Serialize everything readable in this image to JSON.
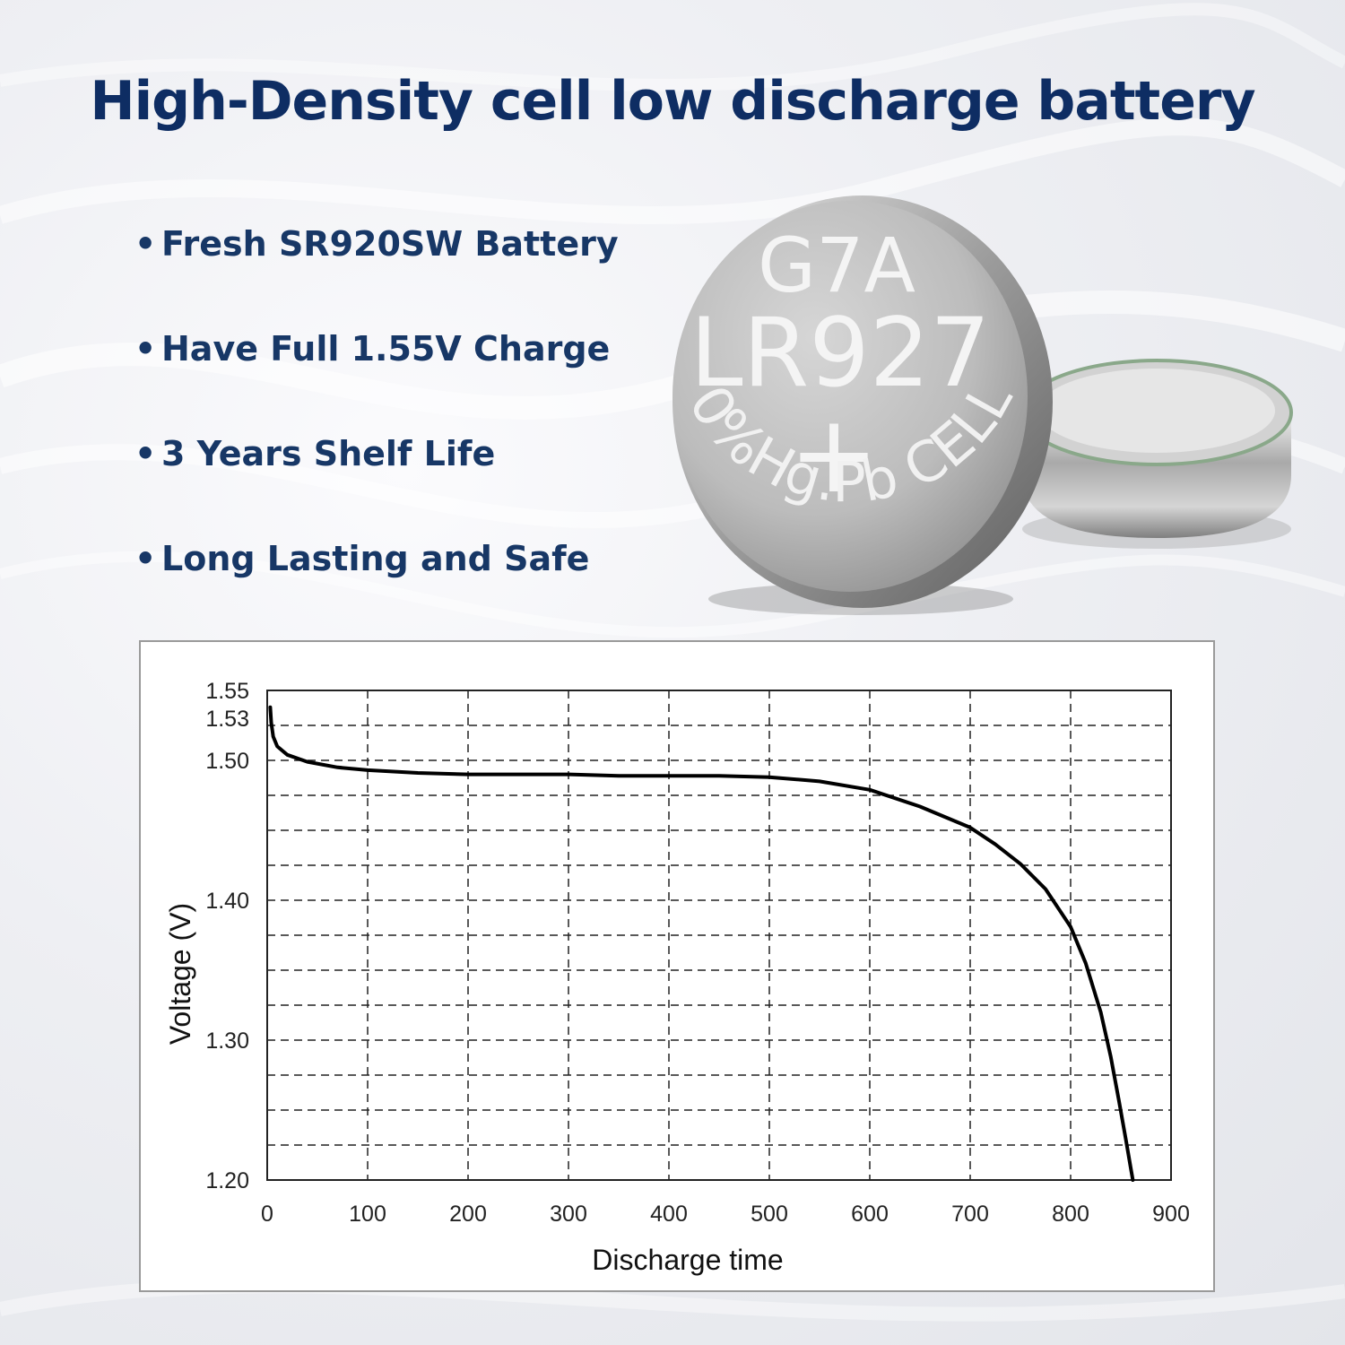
{
  "headline": "High-Density cell low discharge battery",
  "features": [
    "Fresh SR920SW Battery",
    "Have Full 1.55V Charge",
    "3 Years Shelf Life",
    "Long Lasting and Safe"
  ],
  "bullet_char": "•",
  "battery_markings": {
    "model": "G7A",
    "code": "LR927",
    "polarity": "+",
    "ring_text": "0%Hg.Pb CELL"
  },
  "colors": {
    "headline": "#0e2d63",
    "features": "#173766",
    "curve": "#000000",
    "grid": "#222222"
  },
  "chart_data": {
    "type": "line",
    "title": "",
    "xlabel": "Discharge time",
    "ylabel": "Voltage  (V)",
    "xlim": [
      0,
      900
    ],
    "ylim": [
      1.2,
      1.55
    ],
    "grid": true,
    "x_ticks": [
      {
        "value": 0,
        "label": "0"
      },
      {
        "value": 100,
        "label": "100"
      },
      {
        "value": 200,
        "label": "200"
      },
      {
        "value": 300,
        "label": "300"
      },
      {
        "value": 400,
        "label": "400"
      },
      {
        "value": 500,
        "label": "500"
      },
      {
        "value": 600,
        "label": "600"
      },
      {
        "value": 700,
        "label": "700"
      },
      {
        "value": 800,
        "label": "800"
      },
      {
        "value": 900,
        "label": "900"
      }
    ],
    "y_ticks": [
      {
        "value": 1.2,
        "label": "1.20"
      },
      {
        "value": 1.3,
        "label": "1.30"
      },
      {
        "value": 1.4,
        "label": "1.40"
      },
      {
        "value": 1.5,
        "label": "1.50"
      },
      {
        "value": 1.53,
        "label": "1.53"
      },
      {
        "value": 1.55,
        "label": "1.55"
      }
    ],
    "series": [
      {
        "x": [
          3,
          4,
          6,
          10,
          20,
          40,
          70,
          100,
          150,
          200,
          250,
          300,
          350,
          400,
          450,
          500,
          550,
          600,
          650,
          700,
          725,
          750,
          775,
          800,
          815,
          830,
          840,
          848,
          855,
          860,
          862
        ],
        "y": [
          1.538,
          1.527,
          1.517,
          1.51,
          1.504,
          1.499,
          1.495,
          1.493,
          1.491,
          1.49,
          1.49,
          1.49,
          1.489,
          1.489,
          1.489,
          1.488,
          1.485,
          1.479,
          1.467,
          1.452,
          1.44,
          1.426,
          1.408,
          1.381,
          1.355,
          1.32,
          1.288,
          1.257,
          1.229,
          1.208,
          1.2
        ]
      }
    ]
  }
}
